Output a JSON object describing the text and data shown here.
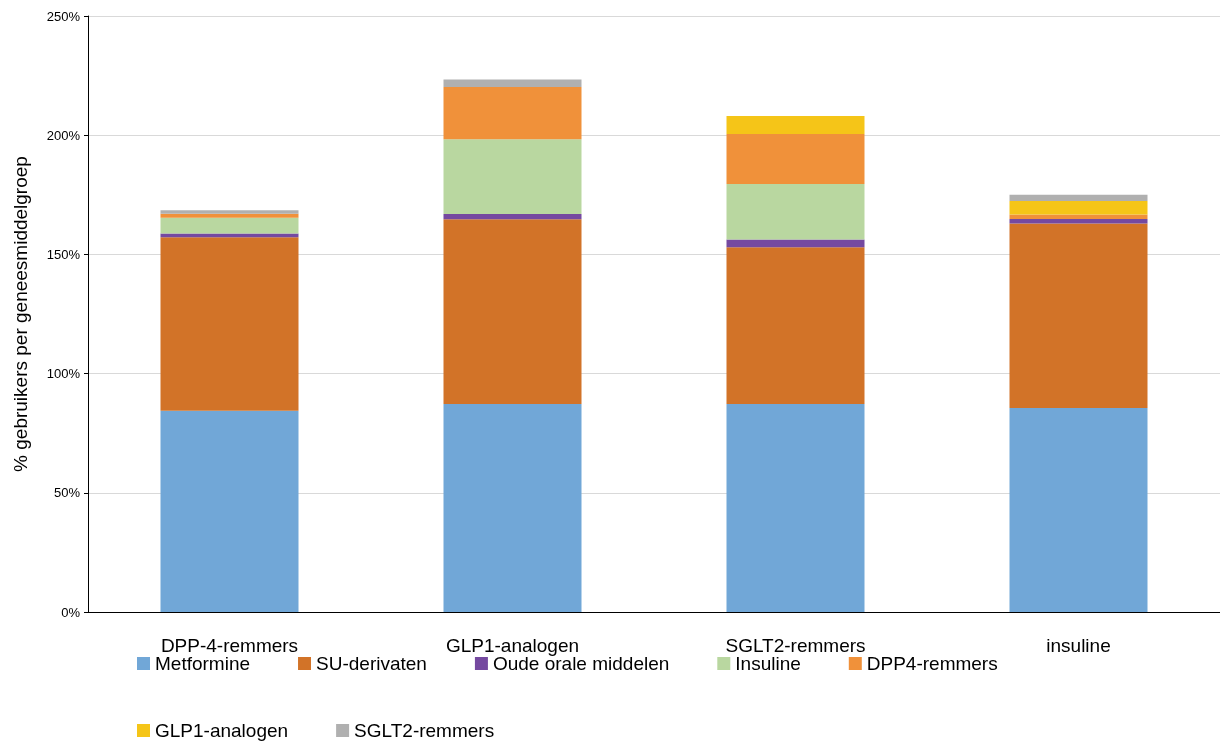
{
  "chart_data": {
    "type": "bar",
    "stacked": true,
    "ylabel": "% gebruikers per geneesmiddelgroep",
    "categories": [
      "DPP-4-remmers",
      "GLP1-analogen",
      "SGLT2-remmers",
      "insuline"
    ],
    "series": [
      {
        "name": "Metformine",
        "color": "#71a7d7",
        "values": [
          84.4,
          87.2,
          87.2,
          85.6
        ]
      },
      {
        "name": "SU-derivaten",
        "color": "#d27328",
        "values": [
          72.8,
          77.5,
          65.8,
          77.4
        ]
      },
      {
        "name": "Oude orale middelen",
        "color": "#7549a0",
        "values": [
          1.6,
          2.2,
          3.3,
          1.8
        ]
      },
      {
        "name": "Insuline",
        "color": "#b9d7a0",
        "values": [
          6.6,
          31.4,
          23.2,
          0
        ]
      },
      {
        "name": "DPP4-remmers",
        "color": "#f0913a",
        "values": [
          1.7,
          21.9,
          21.0,
          1.9
        ]
      },
      {
        "name": "GLP1-analogen",
        "color": "#f5c518",
        "values": [
          0,
          0,
          7.6,
          5.7
        ]
      },
      {
        "name": "SGLT2-remmers",
        "color": "#b0b0b0",
        "values": [
          1.4,
          3.2,
          0,
          2.6
        ]
      }
    ],
    "ylim": [
      0,
      250
    ],
    "yticks": [
      {
        "value": 0,
        "label": "0%"
      },
      {
        "value": 50,
        "label": "50%"
      },
      {
        "value": 100,
        "label": "100%"
      },
      {
        "value": 150,
        "label": "150%"
      },
      {
        "value": 200,
        "label": "200%"
      },
      {
        "value": 250,
        "label": "250%"
      }
    ],
    "grid": "y",
    "legend": "bottom"
  }
}
